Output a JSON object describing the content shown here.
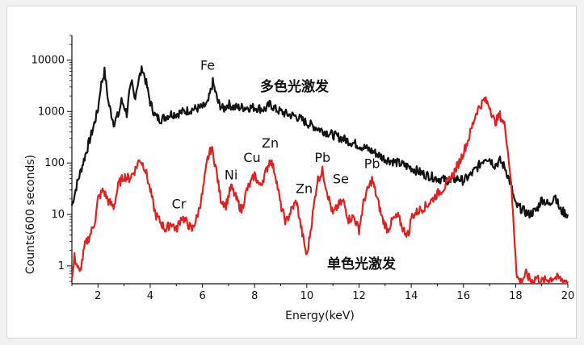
{
  "chart_data": {
    "type": "line",
    "xlabel": "Energy(keV)",
    "ylabel": "Counts(600 seconds)",
    "xlim": [
      1,
      20
    ],
    "ylim": [
      0.45,
      30000
    ],
    "yscale": "log",
    "x_ticks": [
      2,
      4,
      6,
      8,
      10,
      12,
      14,
      16,
      18,
      20
    ],
    "y_ticks": [
      1,
      10,
      100,
      1000,
      10000
    ],
    "y_tick_labels": [
      "1",
      "10",
      "100",
      "1000",
      "10000"
    ],
    "grid": false,
    "series": [
      {
        "name": "多色光激发",
        "color": "#111111",
        "points": [
          [
            1.0,
            15
          ],
          [
            1.2,
            40
          ],
          [
            1.4,
            90
          ],
          [
            1.6,
            200
          ],
          [
            1.8,
            450
          ],
          [
            2.0,
            1100
          ],
          [
            2.1,
            3000
          ],
          [
            2.25,
            6000
          ],
          [
            2.4,
            1500
          ],
          [
            2.6,
            600
          ],
          [
            2.8,
            900
          ],
          [
            2.9,
            1600
          ],
          [
            3.0,
            1300
          ],
          [
            3.1,
            900
          ],
          [
            3.2,
            2200
          ],
          [
            3.3,
            3500
          ],
          [
            3.4,
            1800
          ],
          [
            3.55,
            4000
          ],
          [
            3.7,
            7000
          ],
          [
            3.85,
            3500
          ],
          [
            4.0,
            1500
          ],
          [
            4.2,
            800
          ],
          [
            4.4,
            700
          ],
          [
            4.6,
            800
          ],
          [
            4.8,
            900
          ],
          [
            5.0,
            900
          ],
          [
            5.3,
            1000
          ],
          [
            5.6,
            1100
          ],
          [
            6.0,
            1200
          ],
          [
            6.2,
            1400
          ],
          [
            6.4,
            3700
          ],
          [
            6.6,
            1500
          ],
          [
            6.8,
            1100
          ],
          [
            7.0,
            1400
          ],
          [
            7.2,
            1200
          ],
          [
            7.6,
            1200
          ],
          [
            8.0,
            1200
          ],
          [
            8.4,
            1100
          ],
          [
            8.6,
            1400
          ],
          [
            8.8,
            1100
          ],
          [
            9.2,
            900
          ],
          [
            9.6,
            800
          ],
          [
            10.0,
            600
          ],
          [
            10.5,
            450
          ],
          [
            11.0,
            350
          ],
          [
            11.5,
            280
          ],
          [
            12.0,
            220
          ],
          [
            12.5,
            170
          ],
          [
            13.0,
            120
          ],
          [
            13.5,
            100
          ],
          [
            14.0,
            80
          ],
          [
            14.5,
            60
          ],
          [
            15.0,
            50
          ],
          [
            15.5,
            45
          ],
          [
            15.8,
            50
          ],
          [
            16.0,
            45
          ],
          [
            16.3,
            60
          ],
          [
            16.6,
            90
          ],
          [
            16.85,
            130
          ],
          [
            17.0,
            120
          ],
          [
            17.2,
            90
          ],
          [
            17.4,
            110
          ],
          [
            17.6,
            80
          ],
          [
            17.8,
            40
          ],
          [
            18.0,
            15
          ],
          [
            18.2,
            13
          ],
          [
            18.5,
            10
          ],
          [
            18.8,
            12
          ],
          [
            19.0,
            20
          ],
          [
            19.3,
            15
          ],
          [
            19.5,
            25
          ],
          [
            19.7,
            12
          ],
          [
            20.0,
            10
          ]
        ]
      },
      {
        "name": "单色光激发",
        "color": "#e02020",
        "points": [
          [
            1.0,
            0.5
          ],
          [
            1.1,
            1.5
          ],
          [
            1.3,
            0.7
          ],
          [
            1.5,
            2.5
          ],
          [
            1.7,
            4
          ],
          [
            1.9,
            8
          ],
          [
            2.0,
            20
          ],
          [
            2.2,
            30
          ],
          [
            2.4,
            18
          ],
          [
            2.6,
            14
          ],
          [
            2.8,
            40
          ],
          [
            3.0,
            55
          ],
          [
            3.2,
            50
          ],
          [
            3.4,
            70
          ],
          [
            3.6,
            120
          ],
          [
            3.8,
            80
          ],
          [
            4.0,
            30
          ],
          [
            4.2,
            10
          ],
          [
            4.4,
            7
          ],
          [
            4.6,
            5
          ],
          [
            4.8,
            7
          ],
          [
            5.0,
            5
          ],
          [
            5.2,
            9
          ],
          [
            5.4,
            7
          ],
          [
            5.6,
            5
          ],
          [
            5.8,
            9
          ],
          [
            6.0,
            25
          ],
          [
            6.2,
            120
          ],
          [
            6.35,
            200
          ],
          [
            6.5,
            90
          ],
          [
            6.7,
            20
          ],
          [
            6.9,
            15
          ],
          [
            7.1,
            35
          ],
          [
            7.3,
            20
          ],
          [
            7.5,
            12
          ],
          [
            7.7,
            30
          ],
          [
            7.9,
            45
          ],
          [
            8.0,
            60
          ],
          [
            8.2,
            35
          ],
          [
            8.4,
            60
          ],
          [
            8.6,
            120
          ],
          [
            8.8,
            60
          ],
          [
            9.0,
            15
          ],
          [
            9.2,
            7
          ],
          [
            9.4,
            12
          ],
          [
            9.6,
            18
          ],
          [
            9.8,
            5
          ],
          [
            10.0,
            1.5
          ],
          [
            10.2,
            8
          ],
          [
            10.4,
            45
          ],
          [
            10.6,
            70
          ],
          [
            10.8,
            25
          ],
          [
            11.0,
            10
          ],
          [
            11.2,
            15
          ],
          [
            11.4,
            18
          ],
          [
            11.6,
            8
          ],
          [
            11.8,
            9
          ],
          [
            12.0,
            5
          ],
          [
            12.2,
            20
          ],
          [
            12.5,
            48
          ],
          [
            12.7,
            20
          ],
          [
            12.9,
            8
          ],
          [
            13.1,
            5
          ],
          [
            13.3,
            8
          ],
          [
            13.5,
            9
          ],
          [
            13.7,
            5
          ],
          [
            13.9,
            4
          ],
          [
            14.0,
            9
          ],
          [
            14.3,
            12
          ],
          [
            14.6,
            15
          ],
          [
            15.0,
            25
          ],
          [
            15.3,
            35
          ],
          [
            15.6,
            60
          ],
          [
            15.9,
            120
          ],
          [
            16.2,
            300
          ],
          [
            16.5,
            1000
          ],
          [
            16.8,
            1700
          ],
          [
            17.0,
            1300
          ],
          [
            17.2,
            600
          ],
          [
            17.4,
            850
          ],
          [
            17.6,
            500
          ],
          [
            17.8,
            60
          ],
          [
            17.9,
            10
          ],
          [
            18.0,
            1.5
          ],
          [
            18.05,
            0.6
          ],
          [
            18.2,
            0.5
          ],
          [
            18.4,
            0.7
          ],
          [
            18.6,
            0.5
          ],
          [
            18.8,
            0.6
          ],
          [
            19.0,
            0.5
          ],
          [
            19.5,
            0.6
          ],
          [
            20.0,
            0.5
          ]
        ]
      }
    ],
    "annotations": [
      {
        "text": "Fe",
        "x": 6.2,
        "y": 6500
      },
      {
        "text": "Cr",
        "x": 5.1,
        "y": 13
      },
      {
        "text": "Ni",
        "x": 7.1,
        "y": 48
      },
      {
        "text": "Cu",
        "x": 7.9,
        "y": 105
      },
      {
        "text": "Zn",
        "x": 8.6,
        "y": 200
      },
      {
        "text": "Zn",
        "x": 9.9,
        "y": 26
      },
      {
        "text": "Pb",
        "x": 10.6,
        "y": 105
      },
      {
        "text": "Se",
        "x": 11.3,
        "y": 40
      },
      {
        "text": "Pb",
        "x": 12.5,
        "y": 80
      }
    ],
    "legend_labels": [
      {
        "text": "多色光激发",
        "color": "#111111"
      },
      {
        "text": "单色光激发",
        "color": "#e02020"
      }
    ]
  }
}
